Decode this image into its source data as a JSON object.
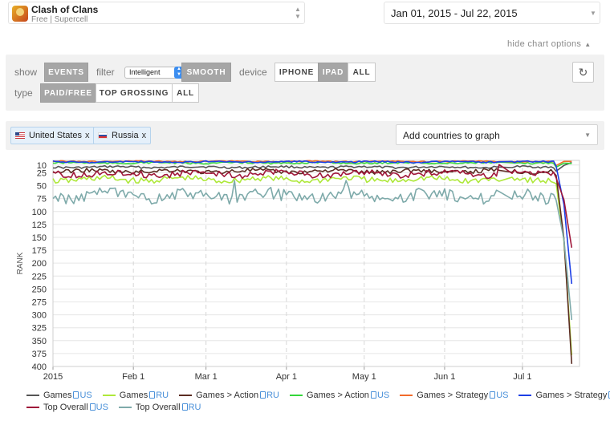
{
  "app": {
    "title": "Clash of Clans",
    "subtitle": "Free | Supercell"
  },
  "date_range": "Jan 01, 2015 - Jul 22, 2015",
  "hide_options": "hide chart options",
  "options": {
    "show_label": "show",
    "events": "EVENTS",
    "filter_label": "filter",
    "filter_value": "Intelligent",
    "smooth": "SMOOTH",
    "device_label": "device",
    "iphone": "IPHONE",
    "ipad": "IPAD",
    "all_device": "ALL",
    "type_label": "type",
    "paid_free": "PAID/FREE",
    "top_grossing": "TOP GROSSING",
    "all_type": "ALL"
  },
  "countries": [
    {
      "name": "United States",
      "close": "x"
    },
    {
      "name": "Russia",
      "close": "x"
    }
  ],
  "add_countries": "Add countries to graph",
  "colors": {
    "games_us": "#555555",
    "games_ru": "#aee83a",
    "games_action_ru": "#5b2c22",
    "games_action_us": "#34d63a",
    "games_strategy_us": "#f26b2a",
    "games_strategy_ru": "#1d3fe6",
    "top_overall_us": "#a0183a",
    "top_overall_ru": "#7eaaaa"
  },
  "chart_data": {
    "type": "line",
    "ylabel": "RANK",
    "y_inverted": true,
    "ylim": [
      400,
      1
    ],
    "y_ticks": [
      10,
      25,
      50,
      75,
      100,
      125,
      150,
      175,
      200,
      225,
      250,
      275,
      300,
      325,
      350,
      375,
      400
    ],
    "x_ticks": [
      "2015",
      "Feb 1",
      "Mar 1",
      "Apr 1",
      "May 1",
      "Jun 1",
      "Jul 1"
    ],
    "x_domain_days": [
      0,
      203
    ],
    "grid": true,
    "series": [
      {
        "name": "Games US",
        "key": "games_us",
        "base": 14,
        "noise": 2,
        "end": 5
      },
      {
        "name": "Games RU",
        "key": "games_ru",
        "base": 38,
        "noise": 6,
        "end": 378
      },
      {
        "name": "Games > Action RU",
        "key": "games_action_ru",
        "base": 22,
        "noise": 4,
        "end": 395
      },
      {
        "name": "Games > Action US",
        "key": "games_action_us",
        "base": 6,
        "noise": 1.5,
        "end": 7
      },
      {
        "name": "Games > Strategy US",
        "key": "games_strategy_us",
        "base": 3,
        "noise": 1,
        "end": 3
      },
      {
        "name": "Games > Strategy RU",
        "key": "games_strategy_ru",
        "base": 4,
        "noise": 1.5,
        "end": 240
      },
      {
        "name": "Top Overall US",
        "key": "top_overall_us",
        "base": 27,
        "noise": 6,
        "end": 170
      },
      {
        "name": "Top Overall RU",
        "key": "top_overall_ru",
        "base": 70,
        "noise": 12,
        "end": 310
      }
    ]
  },
  "legend": [
    {
      "label": "Games",
      "cc": "US",
      "key": "games_us"
    },
    {
      "label": "Games",
      "cc": "RU",
      "key": "games_ru"
    },
    {
      "label": "Games > Action",
      "cc": "RU",
      "key": "games_action_ru"
    },
    {
      "label": "Games > Action",
      "cc": "US",
      "key": "games_action_us"
    },
    {
      "label": "Games > Strategy",
      "cc": "US",
      "key": "games_strategy_us"
    },
    {
      "label": "Games > Strategy",
      "cc": "RU",
      "key": "games_strategy_ru"
    },
    {
      "label": "Top Overall",
      "cc": "US",
      "key": "top_overall_us"
    },
    {
      "label": "Top Overall",
      "cc": "RU",
      "key": "top_overall_ru"
    }
  ]
}
